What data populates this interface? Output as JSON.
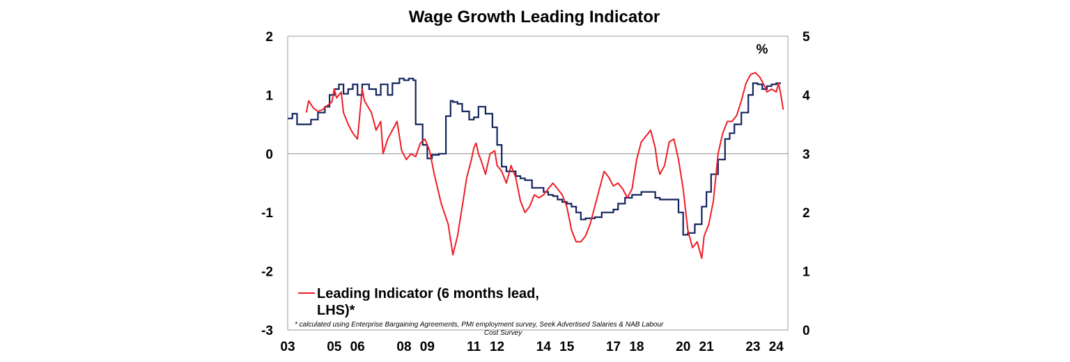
{
  "chart_data": {
    "type": "line",
    "title": "Wage Growth Leading Indicator",
    "x_tick_labels": [
      "03",
      "05",
      "06",
      "08",
      "09",
      "11",
      "12",
      "14",
      "15",
      "17",
      "18",
      "20",
      "21",
      "23",
      "24"
    ],
    "x_tick_years": [
      2003,
      2005,
      2006,
      2008,
      2009,
      2011,
      2012,
      2014,
      2015,
      2017,
      2018,
      2020,
      2021,
      2023,
      2024
    ],
    "xlim": [
      2003.0,
      2024.5
    ],
    "left_axis": {
      "ylim": [
        -3,
        2
      ],
      "ticks": [
        "2",
        "1",
        "0",
        "-1",
        "-2",
        "-3"
      ],
      "tick_values": [
        2,
        1,
        0,
        -1,
        -2,
        -3
      ]
    },
    "right_axis": {
      "ylim": [
        0,
        5
      ],
      "ticks": [
        "5",
        "4",
        "3",
        "2",
        "1",
        "0"
      ],
      "tick_values": [
        5,
        4,
        3,
        2,
        1,
        0
      ],
      "unit": "%"
    },
    "zero_line": true,
    "legend": {
      "placement": "bottom-left",
      "label_line1": "Leading Indicator (6 months lead,",
      "label_line2": "LHS)*"
    },
    "footnote_line1": "* calculated using Enterprise Bargaining Agreements, PMI employment survey, Seek Advertised Salaries & NAB Labour",
    "footnote_line2": "Cost Survey",
    "series": [
      {
        "axis": "left",
        "color": "#ee1c25",
        "step": false,
        "x": [
          2003.8,
          2003.9,
          2004.1,
          2004.3,
          2004.5,
          2004.7,
          2004.9,
          2005.0,
          2005.1,
          2005.3,
          2005.4,
          2005.6,
          2005.8,
          2006.0,
          2006.2,
          2006.3,
          2006.6,
          2006.8,
          2007.0,
          2007.1,
          2007.3,
          2007.5,
          2007.7,
          2007.9,
          2008.1,
          2008.3,
          2008.5,
          2008.7,
          2008.9,
          2009.1,
          2009.3,
          2009.6,
          2009.9,
          2010.1,
          2010.3,
          2010.5,
          2010.7,
          2010.9,
          2011.0,
          2011.1,
          2011.2,
          2011.3,
          2011.5,
          2011.7,
          2011.9,
          2012.0,
          2012.2,
          2012.4,
          2012.6,
          2012.8,
          2013.0,
          2013.2,
          2013.4,
          2013.6,
          2013.8,
          2014.0,
          2014.2,
          2014.4,
          2014.6,
          2014.8,
          2015.0,
          2015.2,
          2015.4,
          2015.6,
          2015.8,
          2016.0,
          2016.2,
          2016.4,
          2016.6,
          2016.8,
          2017.0,
          2017.2,
          2017.4,
          2017.6,
          2017.8,
          2018.0,
          2018.2,
          2018.4,
          2018.6,
          2018.8,
          2018.9,
          2019.0,
          2019.2,
          2019.4,
          2019.6,
          2019.8,
          2020.0,
          2020.2,
          2020.4,
          2020.6,
          2020.8,
          2020.9,
          2021.1,
          2021.3,
          2021.5,
          2021.7,
          2021.9,
          2022.1,
          2022.3,
          2022.5,
          2022.7,
          2022.9,
          2023.1,
          2023.3,
          2023.5,
          2023.6,
          2023.8,
          2024.0,
          2024.1,
          2024.2,
          2024.3
        ],
        "values": [
          0.7,
          0.9,
          0.78,
          0.72,
          0.75,
          0.82,
          0.88,
          1.1,
          0.95,
          1.05,
          0.7,
          0.5,
          0.35,
          0.25,
          1.1,
          0.9,
          0.7,
          0.4,
          0.55,
          0.0,
          0.25,
          0.4,
          0.55,
          0.05,
          -0.1,
          0.0,
          -0.05,
          0.18,
          0.25,
          0.05,
          -0.35,
          -0.85,
          -1.2,
          -1.72,
          -1.4,
          -0.9,
          -0.4,
          -0.1,
          0.1,
          0.18,
          0.0,
          -0.1,
          -0.35,
          0.0,
          0.05,
          -0.2,
          -0.3,
          -0.5,
          -0.2,
          -0.4,
          -0.8,
          -1.0,
          -0.9,
          -0.7,
          -0.75,
          -0.7,
          -0.6,
          -0.5,
          -0.6,
          -0.7,
          -0.9,
          -1.3,
          -1.5,
          -1.5,
          -1.4,
          -1.2,
          -0.9,
          -0.6,
          -0.3,
          -0.4,
          -0.55,
          -0.5,
          -0.6,
          -0.75,
          -0.6,
          -0.1,
          0.2,
          0.3,
          0.4,
          0.1,
          -0.2,
          -0.35,
          -0.2,
          0.2,
          0.25,
          -0.1,
          -0.6,
          -1.3,
          -1.6,
          -1.5,
          -1.78,
          -1.4,
          -1.2,
          -0.8,
          0.0,
          0.35,
          0.55,
          0.55,
          0.65,
          0.9,
          1.2,
          1.35,
          1.38,
          1.3,
          1.15,
          1.05,
          1.1,
          1.05,
          1.2,
          1.0,
          0.75
        ]
      },
      {
        "axis": "right",
        "color": "#12235d",
        "step": true,
        "x": [
          2003.0,
          2003.2,
          2003.4,
          2003.7,
          2004.0,
          2004.3,
          2004.6,
          2004.8,
          2005.0,
          2005.2,
          2005.4,
          2005.6,
          2005.8,
          2006.0,
          2006.2,
          2006.5,
          2006.8,
          2007.0,
          2007.3,
          2007.5,
          2007.8,
          2008.0,
          2008.2,
          2008.4,
          2008.5,
          2008.8,
          2009.0,
          2009.2,
          2009.5,
          2009.8,
          2010.0,
          2010.1,
          2010.3,
          2010.5,
          2010.8,
          2011.0,
          2011.2,
          2011.5,
          2011.8,
          2012.0,
          2012.2,
          2012.4,
          2012.8,
          2013.0,
          2013.2,
          2013.5,
          2013.8,
          2014.0,
          2014.2,
          2014.4,
          2014.6,
          2014.8,
          2015.0,
          2015.2,
          2015.4,
          2015.6,
          2015.8,
          2016.0,
          2016.2,
          2016.5,
          2016.8,
          2017.0,
          2017.2,
          2017.5,
          2017.8,
          2018.0,
          2018.2,
          2018.5,
          2018.8,
          2019.0,
          2019.2,
          2019.5,
          2019.8,
          2020.0,
          2020.2,
          2020.5,
          2020.8,
          2021.0,
          2021.2,
          2021.5,
          2021.8,
          2022.0,
          2022.2,
          2022.5,
          2022.8,
          2023.0,
          2023.2,
          2023.4,
          2023.6,
          2023.8,
          2024.0
        ],
        "values": [
          3.6,
          3.68,
          3.5,
          3.5,
          3.58,
          3.7,
          3.8,
          4.0,
          4.1,
          4.18,
          4.02,
          4.1,
          4.18,
          4.0,
          4.18,
          4.1,
          4.0,
          4.18,
          4.0,
          4.2,
          4.28,
          4.25,
          4.28,
          4.25,
          3.5,
          3.15,
          2.92,
          2.98,
          3.0,
          3.64,
          3.9,
          3.88,
          3.85,
          3.72,
          3.58,
          3.62,
          3.8,
          3.68,
          3.45,
          3.15,
          2.78,
          2.7,
          2.62,
          2.58,
          2.55,
          2.42,
          2.42,
          2.35,
          2.3,
          2.28,
          2.22,
          2.18,
          2.15,
          2.1,
          2.0,
          1.88,
          1.9,
          1.9,
          1.92,
          2.0,
          2.0,
          2.05,
          2.15,
          2.25,
          2.3,
          2.3,
          2.35,
          2.35,
          2.25,
          2.22,
          2.22,
          2.22,
          2.0,
          1.62,
          1.65,
          1.8,
          2.1,
          2.35,
          2.65,
          2.9,
          3.25,
          3.35,
          3.5,
          3.7,
          4.0,
          4.2,
          4.18,
          4.1,
          4.15,
          4.18,
          4.2
        ]
      }
    ]
  }
}
